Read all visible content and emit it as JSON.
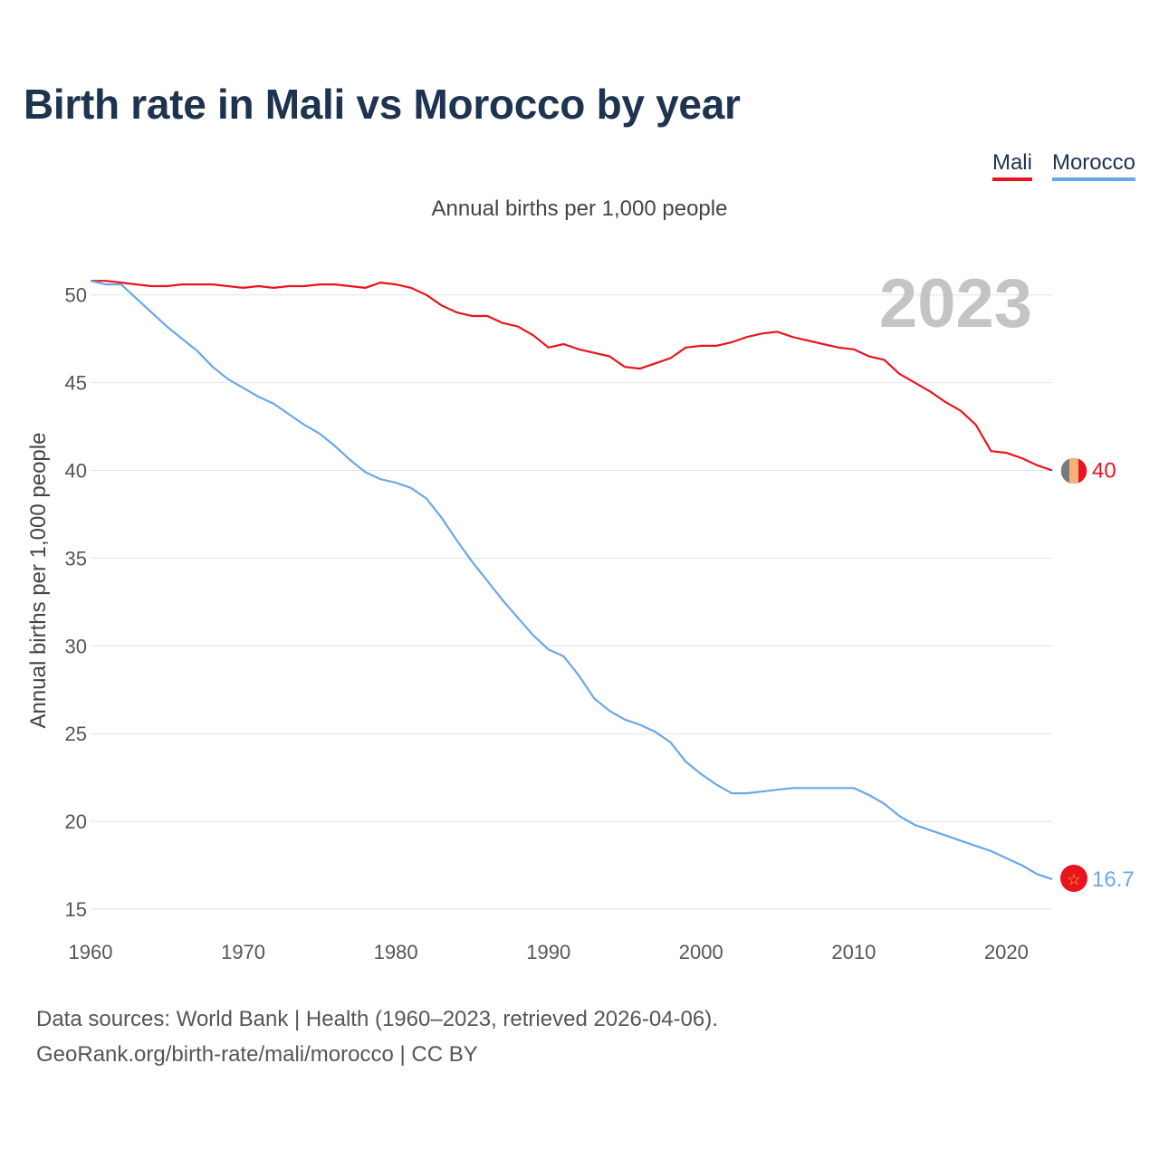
{
  "header": {
    "title": "Birth rate in Mali vs Morocco by year"
  },
  "legend": [
    {
      "name": "Mali",
      "color": "#e8141e"
    },
    {
      "name": "Morocco",
      "color": "#6aa7e6"
    }
  ],
  "footer": {
    "sources": "Data sources: World Bank | Health (1960–2023, retrieved 2026-04-06).",
    "credit": "GeoRank.org/birth-rate/mali/morocco | CC BY"
  },
  "chart_data": {
    "type": "line",
    "title": "Birth rate in Mali vs Morocco by year",
    "subtitle": "Annual births per 1,000 people",
    "xlabel": "",
    "ylabel": "Annual births per 1,000 people",
    "year_label": "2023",
    "xlim": [
      1960,
      2023
    ],
    "ylim": [
      15,
      52
    ],
    "x_ticks": [
      1960,
      1970,
      1980,
      1990,
      2000,
      2010,
      2020
    ],
    "y_ticks": [
      15,
      20,
      25,
      30,
      35,
      40,
      45,
      50
    ],
    "grid": true,
    "x": [
      1960,
      1961,
      1962,
      1963,
      1964,
      1965,
      1966,
      1967,
      1968,
      1969,
      1970,
      1971,
      1972,
      1973,
      1974,
      1975,
      1976,
      1977,
      1978,
      1979,
      1980,
      1981,
      1982,
      1983,
      1984,
      1985,
      1986,
      1987,
      1988,
      1989,
      1990,
      1991,
      1992,
      1993,
      1994,
      1995,
      1996,
      1997,
      1998,
      1999,
      2000,
      2001,
      2002,
      2003,
      2004,
      2005,
      2006,
      2007,
      2008,
      2009,
      2010,
      2011,
      2012,
      2013,
      2014,
      2015,
      2016,
      2017,
      2018,
      2019,
      2020,
      2021,
      2022,
      2023
    ],
    "series": [
      {
        "name": "Mali",
        "color": "#e8141e",
        "end_label": "40",
        "values": [
          50.8,
          50.8,
          50.7,
          50.6,
          50.5,
          50.5,
          50.6,
          50.6,
          50.6,
          50.5,
          50.4,
          50.5,
          50.4,
          50.5,
          50.5,
          50.6,
          50.6,
          50.5,
          50.4,
          50.7,
          50.6,
          50.4,
          50.0,
          49.4,
          49.0,
          48.8,
          48.8,
          48.4,
          48.2,
          47.7,
          47.0,
          47.2,
          46.9,
          46.7,
          46.5,
          45.9,
          45.8,
          46.1,
          46.4,
          47.0,
          47.1,
          47.1,
          47.3,
          47.6,
          47.8,
          47.9,
          47.6,
          47.4,
          47.2,
          47.0,
          46.9,
          46.5,
          46.3,
          45.5,
          45.0,
          44.5,
          43.9,
          43.4,
          42.6,
          41.1,
          41.0,
          40.7,
          40.3,
          40.0
        ]
      },
      {
        "name": "Morocco",
        "color": "#6aa7e6",
        "end_label": "16.7",
        "values": [
          50.8,
          50.6,
          50.6,
          49.8,
          49.0,
          48.2,
          47.5,
          46.8,
          45.9,
          45.2,
          44.7,
          44.2,
          43.8,
          43.2,
          42.6,
          42.1,
          41.4,
          40.6,
          39.9,
          39.5,
          39.3,
          39.0,
          38.4,
          37.3,
          36.0,
          34.8,
          33.7,
          32.6,
          31.6,
          30.6,
          29.8,
          29.4,
          28.3,
          27.0,
          26.3,
          25.8,
          25.5,
          25.1,
          24.5,
          23.4,
          22.7,
          22.1,
          21.6,
          21.6,
          21.7,
          21.8,
          21.9,
          21.9,
          21.9,
          21.9,
          21.9,
          21.5,
          21.0,
          20.3,
          19.8,
          19.5,
          19.2,
          18.9,
          18.6,
          18.3,
          17.9,
          17.5,
          17.0,
          16.7
        ]
      }
    ]
  }
}
